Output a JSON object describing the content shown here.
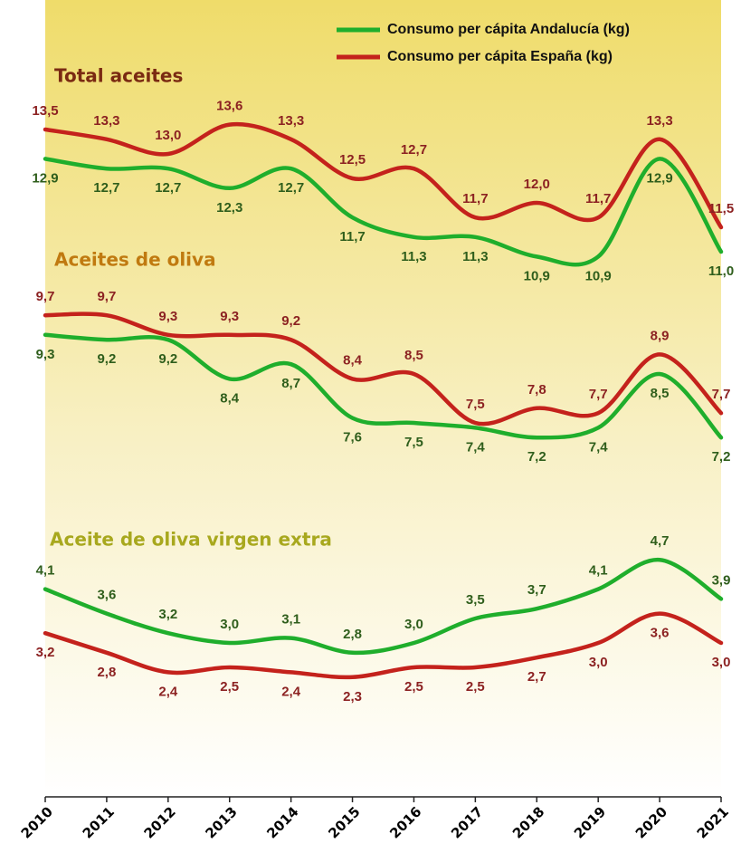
{
  "chart_data": {
    "type": "line",
    "categories": [
      "2010",
      "2011",
      "2012",
      "2013",
      "2014",
      "2015",
      "2016",
      "2017",
      "2018",
      "2019",
      "2020",
      "2021"
    ],
    "ylim": [
      0,
      16
    ],
    "series": [
      {
        "name": "Consumo per cápita Andalucía (kg)",
        "color": "#1fae2c",
        "label_color": "#2f5e1c"
      },
      {
        "name": "Consumo per cápita España (kg)",
        "color": "#c4221c",
        "label_color": "#8c2222"
      }
    ],
    "panels": [
      {
        "title": "Total aceites",
        "title_color": "#7a2a12",
        "series": [
          {
            "values": [
              12.9,
              12.7,
              12.7,
              12.3,
              12.7,
              11.7,
              11.3,
              11.3,
              10.9,
              10.9,
              12.9,
              11.0
            ],
            "value_labels": [
              "12,9",
              "12,7",
              "12,7",
              "12,3",
              "12,7",
              "11,7",
              "11,3",
              "11,3",
              "10,9",
              "10,9",
              "12,9",
              "11,0"
            ]
          },
          {
            "values": [
              13.5,
              13.3,
              13.0,
              13.6,
              13.3,
              12.5,
              12.7,
              11.7,
              12.0,
              11.7,
              13.3,
              11.5
            ],
            "value_labels": [
              "13,5",
              "13,3",
              "13,0",
              "13,6",
              "13,3",
              "12,5",
              "12,7",
              "11,7",
              "12,0",
              "11,7",
              "13,3",
              "11,5"
            ]
          }
        ]
      },
      {
        "title": "Aceites de oliva",
        "title_color": "#c07a10",
        "series": [
          {
            "values": [
              9.3,
              9.2,
              9.2,
              8.4,
              8.7,
              7.6,
              7.5,
              7.4,
              7.2,
              7.4,
              8.5,
              7.2
            ],
            "value_labels": [
              "9,3",
              "9,2",
              "9,2",
              "8,4",
              "8,7",
              "7,6",
              "7,5",
              "7,4",
              "7,2",
              "7,4",
              "8,5",
              "7,2"
            ]
          },
          {
            "values": [
              9.7,
              9.7,
              9.3,
              9.3,
              9.2,
              8.4,
              8.5,
              7.5,
              7.8,
              7.7,
              8.9,
              7.7
            ],
            "value_labels": [
              "9,7",
              "9,7",
              "9,3",
              "9,3",
              "9,2",
              "8,4",
              "8,5",
              "7,5",
              "7,8",
              "7,7",
              "8,9",
              "7,7"
            ]
          }
        ]
      },
      {
        "title": "Aceite de oliva virgen extra",
        "title_color": "#a8a81e",
        "series": [
          {
            "values": [
              4.1,
              3.6,
              3.2,
              3.0,
              3.1,
              2.8,
              3.0,
              3.5,
              3.7,
              4.1,
              4.7,
              3.9
            ],
            "value_labels": [
              "4,1",
              "3,6",
              "3,2",
              "3,0",
              "3,1",
              "2,8",
              "3,0",
              "3,5",
              "3,7",
              "4,1",
              "4,7",
              "3,9"
            ]
          },
          {
            "values": [
              3.2,
              2.8,
              2.4,
              2.5,
              2.4,
              2.3,
              2.5,
              2.5,
              2.7,
              3.0,
              3.6,
              3.0
            ],
            "value_labels": [
              "3,2",
              "2,8",
              "2,4",
              "2,5",
              "2,4",
              "2,3",
              "2,5",
              "2,5",
              "2,7",
              "3,0",
              "3,6",
              "3,0"
            ]
          }
        ]
      }
    ]
  }
}
